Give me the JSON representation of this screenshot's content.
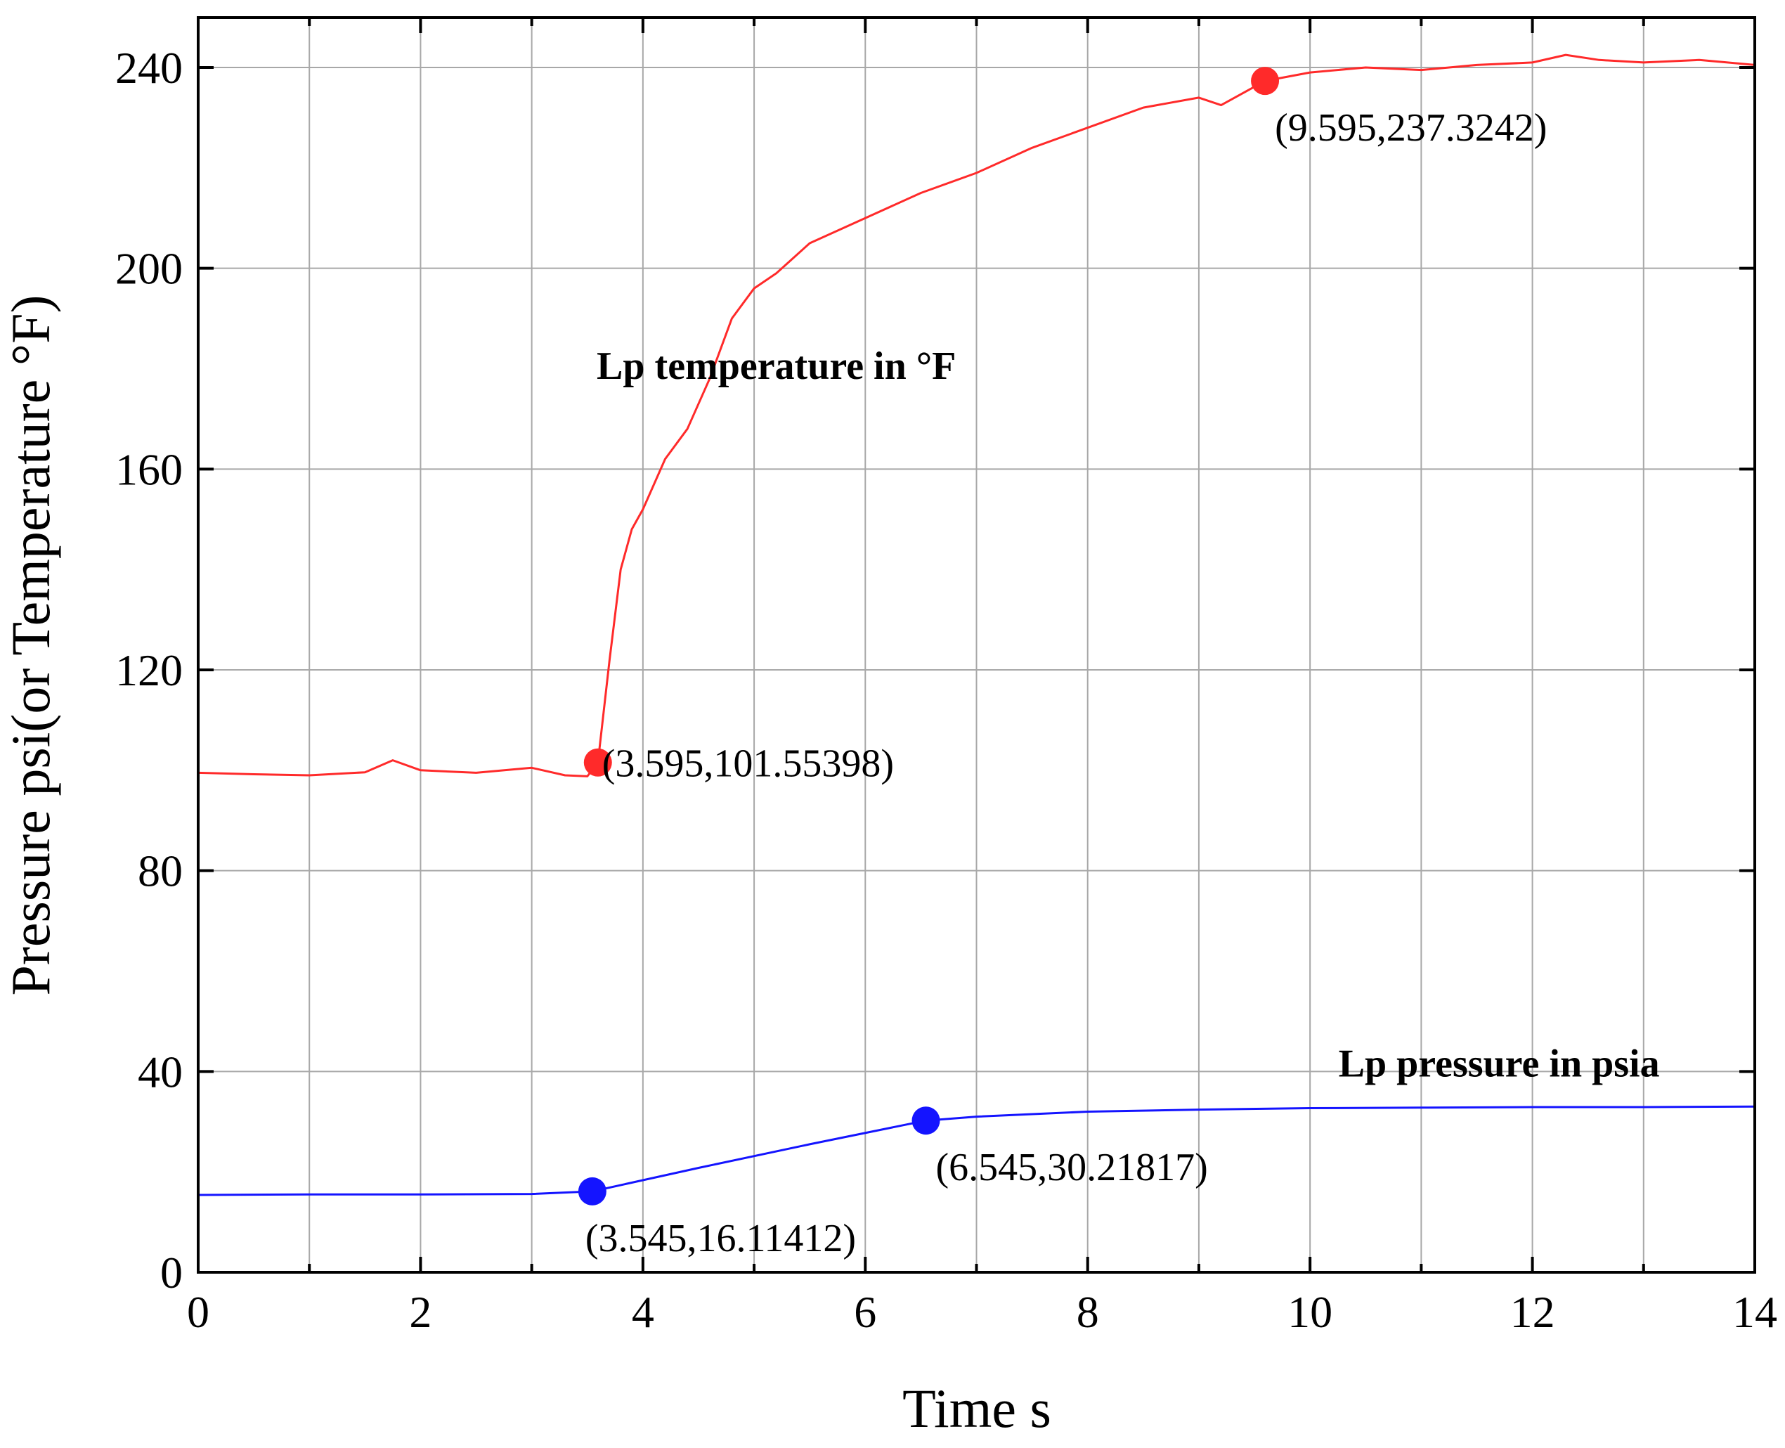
{
  "chart_data": {
    "type": "line",
    "xlabel": "Time s",
    "ylabel": "Pressure psi(or Temperature °F)",
    "xlim": [
      0,
      14
    ],
    "ylim": [
      0,
      250
    ],
    "x_ticks": [
      0,
      2,
      4,
      6,
      8,
      10,
      12,
      14
    ],
    "y_ticks": [
      0,
      40,
      80,
      120,
      160,
      200,
      240
    ],
    "x_minor_ticks": [
      1,
      3,
      5,
      7,
      9,
      11,
      13
    ],
    "grid": true,
    "series": [
      {
        "name": "Lp temperature in °F",
        "color": "#ff2a2a",
        "label_at": [
          5.2,
          178
        ],
        "x": [
          0,
          0.5,
          1.0,
          1.5,
          1.75,
          2.0,
          2.5,
          3.0,
          3.3,
          3.5,
          3.595,
          3.7,
          3.8,
          3.9,
          4.0,
          4.2,
          4.4,
          4.6,
          4.8,
          5.0,
          5.2,
          5.5,
          6.0,
          6.5,
          7.0,
          7.5,
          8.0,
          8.5,
          9.0,
          9.2,
          9.595,
          10.0,
          10.5,
          11.0,
          11.5,
          12.0,
          12.3,
          12.6,
          13.0,
          13.5,
          14.0
        ],
        "y": [
          99.5,
          99.2,
          99.0,
          99.6,
          102.0,
          100.0,
          99.5,
          100.5,
          99.0,
          98.8,
          101.55,
          122,
          140,
          148,
          152,
          162,
          168,
          178,
          190,
          196,
          199,
          205,
          210,
          215,
          219,
          224,
          228,
          232,
          234,
          232.5,
          237.32,
          239,
          240,
          239.5,
          240.5,
          241,
          242.5,
          241.5,
          241,
          241.5,
          240.5
        ]
      },
      {
        "name": "Lp pressure in psia",
        "color": "#1414ff",
        "label_at": [
          11.7,
          39
        ],
        "x": [
          0,
          1.0,
          2.0,
          3.0,
          3.545,
          4.5,
          5.5,
          6.545,
          7.0,
          8.0,
          9.0,
          10.0,
          11.0,
          12.0,
          13.0,
          14.0
        ],
        "y": [
          15.4,
          15.5,
          15.5,
          15.6,
          16.11,
          20.8,
          25.5,
          30.22,
          31.0,
          32.0,
          32.4,
          32.7,
          32.8,
          32.9,
          32.9,
          33.0
        ]
      }
    ],
    "markers": [
      {
        "x": 3.595,
        "y": 101.55398,
        "label": "(3.595,101.55398)",
        "color": "#ff2a2a",
        "label_pos": "right"
      },
      {
        "x": 9.595,
        "y": 237.3242,
        "label": "(9.595,237.3242)",
        "color": "#ff2a2a",
        "label_pos": "below-right"
      },
      {
        "x": 3.545,
        "y": 16.11412,
        "label": "(3.545,16.11412)",
        "color": "#1414ff",
        "label_pos": "below"
      },
      {
        "x": 6.545,
        "y": 30.21817,
        "label": "(6.545,30.21817)",
        "color": "#1414ff",
        "label_pos": "below-right"
      }
    ]
  }
}
